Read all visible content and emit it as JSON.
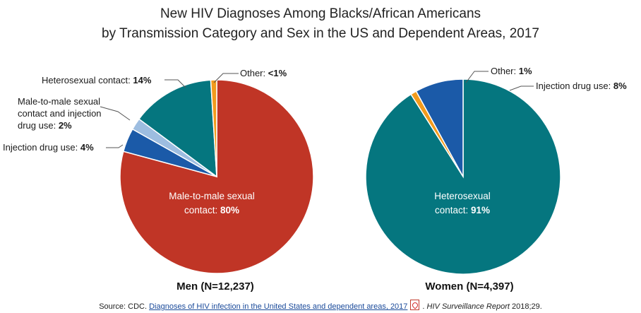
{
  "title_line1": "New HIV Diagnoses Among Blacks/African Americans",
  "title_line2": "by Transmission Category and Sex in the US and Dependent Areas, 2017",
  "colors": {
    "mmsc": "#c03526",
    "idu": "#1b5aa8",
    "mmsc_idu": "#9dbde0",
    "hetero": "#05767f",
    "other": "#f29b1d"
  },
  "chart_data": [
    {
      "type": "pie",
      "caption": "Men (N=12,237)",
      "slices": [
        {
          "name": "Male-to-male sexual contact",
          "value": 80,
          "label_prefix": "Male-to-male sexual",
          "label_line2": "contact: ",
          "label_value": "80%",
          "color_key": "mmsc"
        },
        {
          "name": "Injection drug use",
          "value": 4,
          "label_prefix": "Injection drug use: ",
          "label_value": "4%",
          "color_key": "idu"
        },
        {
          "name": "Male-to-male sexual contact and injection drug use",
          "value": 2,
          "label_line1": "Male-to-male sexual",
          "label_line2": "contact and injection",
          "label_line3": "drug use: ",
          "label_value": "2%",
          "color_key": "mmsc_idu"
        },
        {
          "name": "Heterosexual contact",
          "value": 14,
          "label_prefix": "Heterosexual contact: ",
          "label_value": "14%",
          "color_key": "hetero"
        },
        {
          "name": "Other",
          "value": 1,
          "label_prefix": "Other: ",
          "label_value": "<1%",
          "color_key": "other"
        }
      ]
    },
    {
      "type": "pie",
      "caption": "Women (N=4,397)",
      "slices": [
        {
          "name": "Heterosexual contact",
          "value": 91,
          "label_prefix": "Heterosexual",
          "label_line2": "contact: ",
          "label_value": "91%",
          "color_key": "hetero"
        },
        {
          "name": "Other",
          "value": 1,
          "label_prefix": "Other: ",
          "label_value": "1%",
          "color_key": "other"
        },
        {
          "name": "Injection drug use",
          "value": 8,
          "label_prefix": "Injection drug use: ",
          "label_value": "8%",
          "color_key": "idu"
        }
      ]
    }
  ],
  "source": {
    "prefix": "Source: CDC. ",
    "link_text": "Diagnoses of HIV infection in the United States and dependent areas, 2017",
    "journal": "HIV Surveillance Report",
    "suffix": " 2018;29."
  }
}
